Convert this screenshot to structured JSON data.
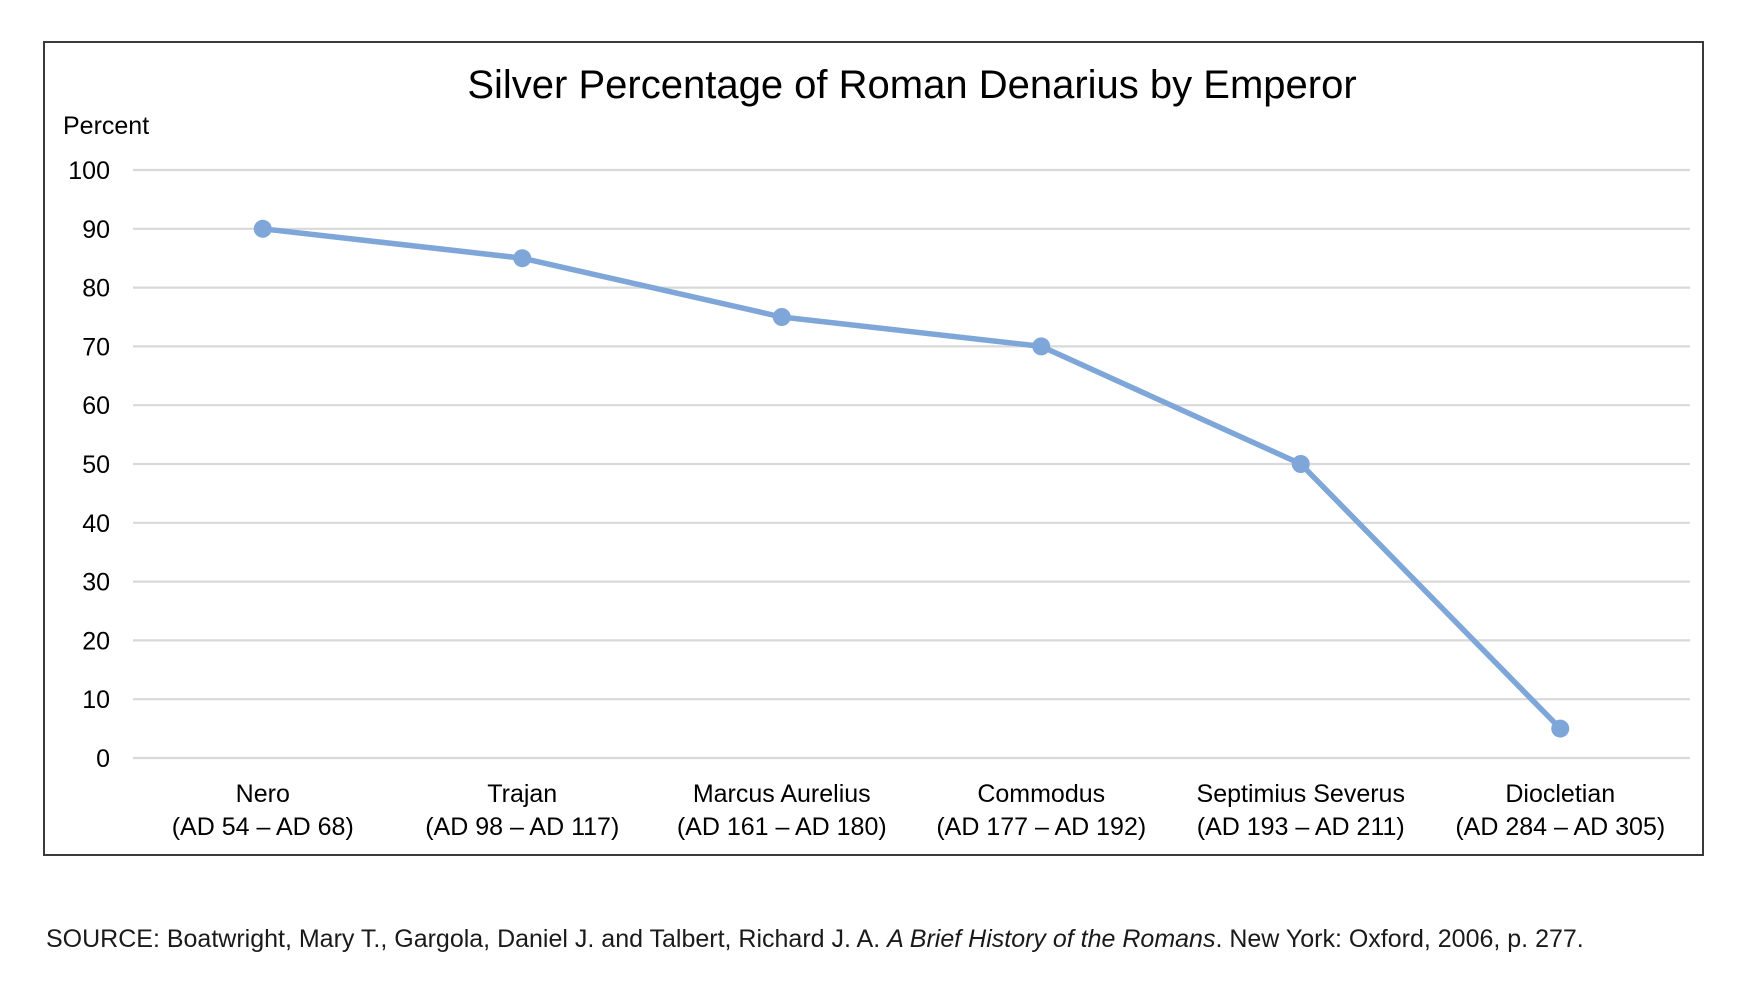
{
  "chart_data": {
    "type": "line",
    "title": "Silver Percentage of Roman Denarius by Emperor",
    "ylabel": "Percent",
    "xlabel": "",
    "ylim": [
      0,
      100
    ],
    "yticks": [
      0,
      10,
      20,
      30,
      40,
      50,
      60,
      70,
      80,
      90,
      100
    ],
    "grid": true,
    "legend": "none",
    "series_color": "#7ea6d8",
    "gridline_color": "#d9d9d9",
    "categories": [
      {
        "name": "Nero",
        "period": "(AD 54 – AD 68)"
      },
      {
        "name": "Trajan",
        "period": "(AD 98 – AD 117)"
      },
      {
        "name": "Marcus Aurelius",
        "period": "(AD 161 – AD 180)"
      },
      {
        "name": "Commodus",
        "period": "(AD 177 – AD 192)"
      },
      {
        "name": "Septimius Severus",
        "period": "(AD 193 – AD 211)"
      },
      {
        "name": "Diocletian",
        "period": "(AD 284 – AD 305)"
      }
    ],
    "series": [
      {
        "values": [
          90,
          85,
          75,
          70,
          50,
          5
        ]
      }
    ]
  },
  "source": {
    "prefix": "SOURCE: Boatwright, Mary T., Gargola, Daniel J. and Talbert, Richard J. A. ",
    "book_title": "A Brief History of the Romans",
    "suffix": ". New York: Oxford, 2006, p. 277."
  }
}
